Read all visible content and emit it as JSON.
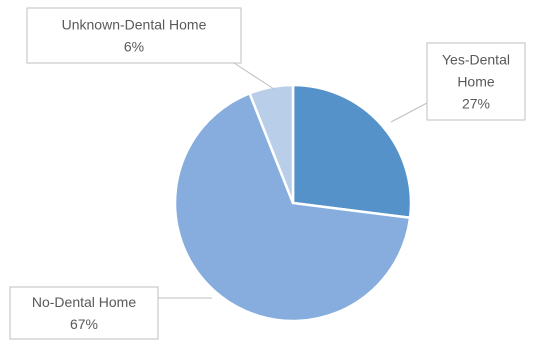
{
  "chart_data": {
    "type": "pie",
    "title": "",
    "slices": [
      {
        "label": "Yes-Dental Home",
        "value": 27,
        "value_label": "27%",
        "color": "#5592c9"
      },
      {
        "label": "No-Dental Home",
        "value": 67,
        "value_label": "67%",
        "color": "#86addd"
      },
      {
        "label": "Unknown-Dental Home",
        "value": 6,
        "value_label": "6%",
        "color": "#b9cfe9"
      }
    ],
    "label_lines": [
      [
        "Yes-Dental",
        "Home",
        "27%"
      ],
      [
        "No-Dental Home",
        "67%"
      ],
      [
        "Unknown-Dental Home",
        "6%"
      ]
    ],
    "start_angle_deg": 0,
    "direction": "clockwise",
    "slice_border_color": "#ffffff",
    "label_style": "callout",
    "legend": "none"
  }
}
